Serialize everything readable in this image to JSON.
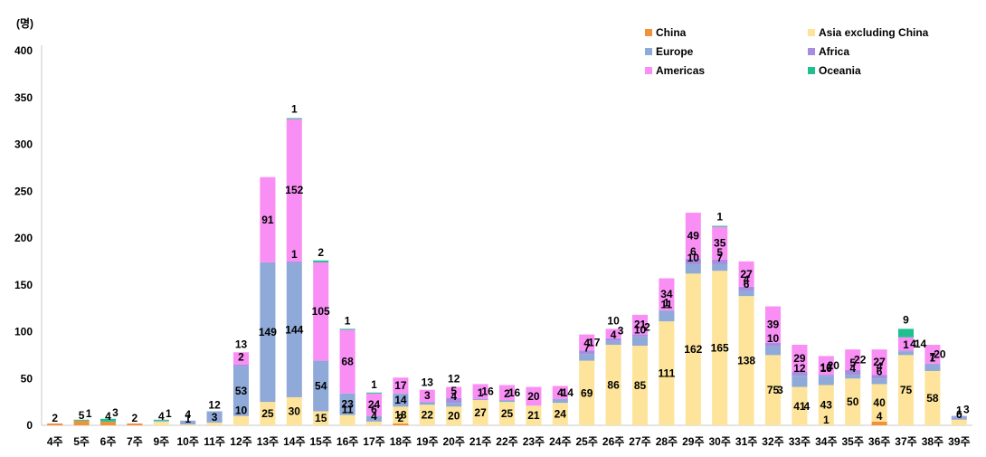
{
  "chart_data": {
    "type": "bar",
    "stacked": true,
    "unit_label": "(명)",
    "ylim": [
      0,
      400
    ],
    "yticks": [
      0,
      50,
      100,
      150,
      200,
      250,
      300,
      350,
      400
    ],
    "grid": false,
    "legend_position": "top-right",
    "categories": [
      "4주",
      "5주",
      "6주",
      "7주",
      "9주",
      "10주",
      "11주",
      "12주",
      "13주",
      "14주",
      "15주",
      "16주",
      "17주",
      "18주",
      "19주",
      "20주",
      "21주",
      "22주",
      "23주",
      "24주",
      "25주",
      "26주",
      "27주",
      "28주",
      "29주",
      "30주",
      "31주",
      "32주",
      "33주",
      "34주",
      "35주",
      "36주",
      "37주",
      "38주",
      "39주"
    ],
    "series": [
      {
        "name": "China",
        "color": "#f0923a",
        "values": [
          2,
          5,
          4,
          2,
          0,
          0,
          0,
          0,
          0,
          0,
          0,
          0,
          0,
          2,
          0,
          0,
          0,
          0,
          0,
          0,
          0,
          0,
          0,
          0,
          0,
          0,
          0,
          0,
          0,
          0,
          0,
          4,
          0,
          0,
          0
        ]
      },
      {
        "name": "Asia excluding China",
        "color": "#fde49a",
        "values": [
          0,
          0,
          0,
          0,
          4,
          1,
          3,
          10,
          25,
          30,
          15,
          11,
          4,
          18,
          22,
          20,
          27,
          25,
          21,
          24,
          69,
          86,
          85,
          111,
          162,
          165,
          138,
          75,
          41,
          43,
          50,
          40,
          75,
          58,
          6
        ]
      },
      {
        "name": "Europe",
        "color": "#8fa9d8",
        "values": [
          0,
          0,
          0,
          0,
          1,
          4,
          12,
          53,
          149,
          144,
          54,
          23,
          6,
          14,
          3,
          4,
          1,
          2,
          0,
          4,
          7,
          4,
          10,
          11,
          10,
          7,
          6,
          10,
          12,
          10,
          4,
          6,
          4,
          7,
          3
        ]
      },
      {
        "name": "Africa",
        "color": "#a98be0",
        "values": [
          0,
          0,
          0,
          0,
          0,
          0,
          0,
          2,
          0,
          1,
          0,
          0,
          0,
          0,
          0,
          5,
          0,
          0,
          0,
          0,
          4,
          3,
          2,
          1,
          6,
          5,
          4,
          3,
          4,
          1,
          5,
          4,
          1,
          1,
          1
        ]
      },
      {
        "name": "Americas",
        "color": "#f98ff5",
        "values": [
          0,
          0,
          0,
          0,
          0,
          0,
          0,
          13,
          91,
          152,
          105,
          68,
          24,
          17,
          13,
          12,
          16,
          16,
          20,
          14,
          17,
          10,
          21,
          34,
          49,
          35,
          27,
          39,
          29,
          20,
          22,
          27,
          14,
          20,
          0
        ]
      },
      {
        "name": "Oceania",
        "color": "#1fbf8f",
        "values": [
          0,
          1,
          3,
          0,
          1,
          0,
          0,
          0,
          0,
          1,
          2,
          1,
          1,
          0,
          0,
          0,
          0,
          0,
          0,
          0,
          0,
          0,
          0,
          0,
          0,
          1,
          0,
          0,
          0,
          0,
          0,
          0,
          9,
          0,
          0
        ]
      }
    ],
    "labels": [
      [
        {
          "text": "2",
          "series": 0
        }
      ],
      [
        {
          "text": "5",
          "series": 0
        },
        {
          "text": "1",
          "series": 5
        }
      ],
      [
        {
          "text": "4",
          "series": 0
        },
        {
          "text": "3",
          "series": 5
        }
      ],
      [
        {
          "text": "2",
          "series": 0
        }
      ],
      [
        {
          "text": "4",
          "series": 1
        },
        {
          "text": "1",
          "series": 5
        }
      ],
      [
        {
          "text": "1",
          "series": 1
        },
        {
          "text": "4",
          "series": 2
        }
      ],
      [
        {
          "text": "3",
          "series": 1
        },
        {
          "text": "12",
          "series": 2
        }
      ],
      [
        {
          "text": "10",
          "series": 1
        },
        {
          "text": "53",
          "series": 2
        },
        {
          "text": "2",
          "series": 3
        },
        {
          "text": "13",
          "series": 4
        }
      ],
      [
        {
          "text": "25",
          "series": 1
        },
        {
          "text": "149",
          "series": 2
        },
        {
          "text": "91",
          "series": 4
        }
      ],
      [
        {
          "text": "30",
          "series": 1
        },
        {
          "text": "144",
          "series": 2
        },
        {
          "text": "1",
          "series": 3
        },
        {
          "text": "152",
          "series": 4
        },
        {
          "text": "1",
          "series": 5
        }
      ],
      [
        {
          "text": "15",
          "series": 1
        },
        {
          "text": "54",
          "series": 2
        },
        {
          "text": "105",
          "series": 4
        },
        {
          "text": "2",
          "series": 5
        }
      ],
      [
        {
          "text": "11",
          "series": 1
        },
        {
          "text": "23",
          "series": 2
        },
        {
          "text": "68",
          "series": 4
        },
        {
          "text": "1",
          "series": 5
        }
      ],
      [
        {
          "text": "4",
          "series": 1
        },
        {
          "text": "6",
          "series": 2
        },
        {
          "text": "24",
          "series": 4
        },
        {
          "text": "1",
          "series": 5
        }
      ],
      [
        {
          "text": "2",
          "series": 0
        },
        {
          "text": "18",
          "series": 1
        },
        {
          "text": "14",
          "series": 2
        },
        {
          "text": "17",
          "series": 4
        }
      ],
      [
        {
          "text": "22",
          "series": 1
        },
        {
          "text": "3",
          "series": 2
        },
        {
          "text": "13",
          "series": 4
        }
      ],
      [
        {
          "text": "20",
          "series": 1
        },
        {
          "text": "4",
          "series": 2
        },
        {
          "text": "5",
          "series": 3
        },
        {
          "text": "12",
          "series": 4
        }
      ],
      [
        {
          "text": "27",
          "series": 1
        },
        {
          "text": "1",
          "series": 2
        },
        {
          "text": "16",
          "series": 4
        }
      ],
      [
        {
          "text": "25",
          "series": 1
        },
        {
          "text": "2",
          "series": 2
        },
        {
          "text": "16",
          "series": 4
        }
      ],
      [
        {
          "text": "21",
          "series": 1
        },
        {
          "text": "20",
          "series": 4
        }
      ],
      [
        {
          "text": "24",
          "series": 1
        },
        {
          "text": "4",
          "series": 2
        },
        {
          "text": "14",
          "series": 4
        }
      ],
      [
        {
          "text": "69",
          "series": 1
        },
        {
          "text": "7",
          "series": 2
        },
        {
          "text": "4",
          "series": 3
        },
        {
          "text": "17",
          "series": 4
        }
      ],
      [
        {
          "text": "86",
          "series": 1
        },
        {
          "text": "4",
          "series": 2
        },
        {
          "text": "3",
          "series": 3
        },
        {
          "text": "10",
          "series": 4
        }
      ],
      [
        {
          "text": "85",
          "series": 1
        },
        {
          "text": "10",
          "series": 2
        },
        {
          "text": "2",
          "series": 3
        },
        {
          "text": "21",
          "series": 4
        }
      ],
      [
        {
          "text": "111",
          "series": 1
        },
        {
          "text": "11",
          "series": 2
        },
        {
          "text": "1",
          "series": 3
        },
        {
          "text": "34",
          "series": 4
        }
      ],
      [
        {
          "text": "162",
          "series": 1
        },
        {
          "text": "10",
          "series": 2
        },
        {
          "text": "6",
          "series": 3
        },
        {
          "text": "49",
          "series": 4
        }
      ],
      [
        {
          "text": "165",
          "series": 1
        },
        {
          "text": "7",
          "series": 2
        },
        {
          "text": "5",
          "series": 3
        },
        {
          "text": "35",
          "series": 4
        },
        {
          "text": "1",
          "series": 5
        }
      ],
      [
        {
          "text": "138",
          "series": 1
        },
        {
          "text": "6",
          "series": 2
        },
        {
          "text": "4",
          "series": 3
        },
        {
          "text": "27",
          "series": 4
        }
      ],
      [
        {
          "text": "75",
          "series": 1
        },
        {
          "text": "3",
          "series": 1
        },
        {
          "text": "10",
          "series": 2
        },
        {
          "text": "39",
          "series": 4
        }
      ],
      [
        {
          "text": "41",
          "series": 1
        },
        {
          "text": "4",
          "series": 1
        },
        {
          "text": "12",
          "series": 2
        },
        {
          "text": "29",
          "series": 4
        }
      ],
      [
        {
          "text": "1",
          "series": 0
        },
        {
          "text": "43",
          "series": 1
        },
        {
          "text": "10",
          "series": 2
        },
        {
          "text": "10",
          "series": 2
        },
        {
          "text": "20",
          "series": 4
        }
      ],
      [
        {
          "text": "50",
          "series": 1
        },
        {
          "text": "4",
          "series": 2
        },
        {
          "text": "5",
          "series": 3
        },
        {
          "text": "22",
          "series": 4
        }
      ],
      [
        {
          "text": "4",
          "series": 0
        },
        {
          "text": "40",
          "series": 1
        },
        {
          "text": "6",
          "series": 2
        },
        {
          "text": "4",
          "series": 3
        },
        {
          "text": "27",
          "series": 4
        }
      ],
      [
        {
          "text": "75",
          "series": 1
        },
        {
          "text": "1",
          "series": 2
        },
        {
          "text": "4",
          "series": 2
        },
        {
          "text": "14",
          "series": 4
        },
        {
          "text": "9",
          "series": 5
        }
      ],
      [
        {
          "text": "58",
          "series": 1
        },
        {
          "text": "1",
          "series": 2
        },
        {
          "text": "7",
          "series": 2
        },
        {
          "text": "20",
          "series": 4
        }
      ],
      [
        {
          "text": "6",
          "series": 1
        },
        {
          "text": "1",
          "series": 2
        },
        {
          "text": "3",
          "series": 2
        }
      ]
    ]
  }
}
